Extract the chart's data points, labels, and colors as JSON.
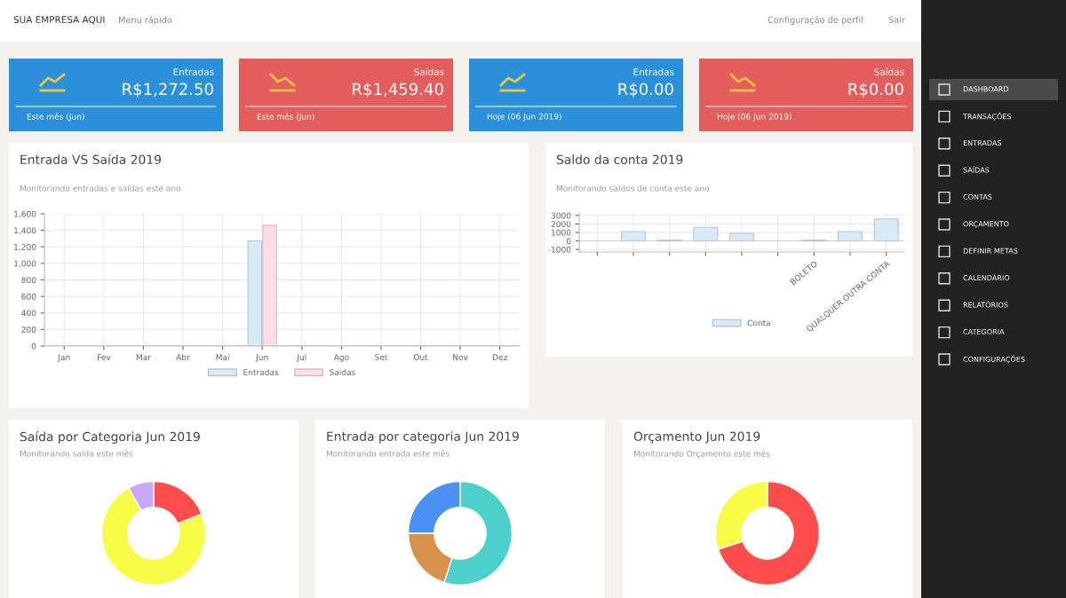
{
  "chart_data": [
    {
      "type": "other",
      "annotations": [
        "SUA EMPRESA AQUI",
        "Menu rápido",
        "Configuração de perfil",
        "Sair"
      ]
    },
    {
      "type": "other",
      "annotations": [
        "DASHBOARD",
        "TRANSAÇÕES",
        "ENTRADAS",
        "SAÍDAS",
        "CONTAS",
        "ORÇAMENTO",
        "DEFINIR METAS",
        "CALENDÁRIO",
        "RELATÓRIOS",
        "CATEGORIA",
        "CONFIGURAÇÕES"
      ]
    },
    {
      "type": "other",
      "title": "Entradas",
      "annotations": [
        "R$1,272.50",
        "Este mês (Jun)"
      ]
    },
    {
      "type": "other",
      "title": "Saídas",
      "annotations": [
        "R$1,459.40",
        "Este mês (Jun)"
      ]
    },
    {
      "type": "other",
      "title": "Entradas",
      "annotations": [
        "R$0.00",
        "Hoje (06 Jun 2019)"
      ]
    },
    {
      "type": "other",
      "title": "Saídas",
      "annotations": [
        "R$0.00",
        "Hoje (06 Jun 2019)"
      ]
    },
    {
      "type": "bar",
      "title": "Entrada VS Saída 2019",
      "subtitle": "Monitorando entradas e saídas este ano",
      "categories": [
        "Jan",
        "Fev",
        "Mar",
        "Abr",
        "Mai",
        "Jun",
        "Jul",
        "Ago",
        "Set",
        "Out",
        "Nov",
        "Dez"
      ],
      "series": [
        {
          "name": "Entradas",
          "color": "#d6eaf8",
          "values": [
            0,
            0,
            0,
            0,
            0,
            1272.5,
            0,
            0,
            0,
            0,
            0,
            0
          ]
        },
        {
          "name": "Saídas",
          "color": "#fcdde5",
          "values": [
            0,
            0,
            0,
            0,
            0,
            1459.4,
            0,
            0,
            0,
            0,
            0,
            0
          ]
        }
      ],
      "ylim": [
        0,
        1600
      ],
      "yticks": [
        0,
        200,
        400,
        600,
        800,
        {
          "value": 1000,
          "label": "1,000"
        },
        {
          "value": 1200,
          "label": "1,200"
        },
        {
          "value": 1400,
          "label": "1,400"
        },
        {
          "value": 1600,
          "label": "1,600"
        }
      ],
      "grid": true,
      "legend": "bottom"
    },
    {
      "type": "bar",
      "title": "Saldo da conta 2019",
      "subtitle": "Monitorando saldos de conta este ano",
      "categories": [
        null,
        null,
        null,
        null,
        null,
        null,
        "BOLETO",
        null,
        "QUALQUER OUTRA CONTA"
      ],
      "series": [
        {
          "name": "Conta",
          "color": "#d6eaf8",
          "values": [
            0,
            1100,
            100,
            1600,
            900,
            0,
            100,
            1100,
            2600
          ]
        }
      ],
      "ylim": [
        -1300,
        3300
      ],
      "yticks": [
        -1000,
        0,
        1000,
        2000,
        3000
      ],
      "grid": true,
      "legend": "bottom"
    },
    {
      "type": "donut",
      "title": "Saída por Categoria Jun 2019",
      "subtitle": "Monitorando saída este mês",
      "values": [
        19,
        73,
        8
      ],
      "colors": [
        "#ff4d4d",
        "#f8fc46",
        "#c9a7f7"
      ]
    },
    {
      "type": "donut",
      "title": "Entrada por categoria Jun 2019",
      "subtitle": "Monitorando entrada este mês",
      "values": [
        55,
        20,
        25
      ],
      "colors": [
        "#4dd0cc",
        "#d9924e",
        "#4a90f5"
      ]
    },
    {
      "type": "donut",
      "title": "Orçamento Jun 2019",
      "subtitle": "Monitorando Orçamento este mês",
      "values": [
        70,
        30
      ],
      "colors": [
        "#ff4d4d",
        "#f8fc46"
      ]
    }
  ]
}
